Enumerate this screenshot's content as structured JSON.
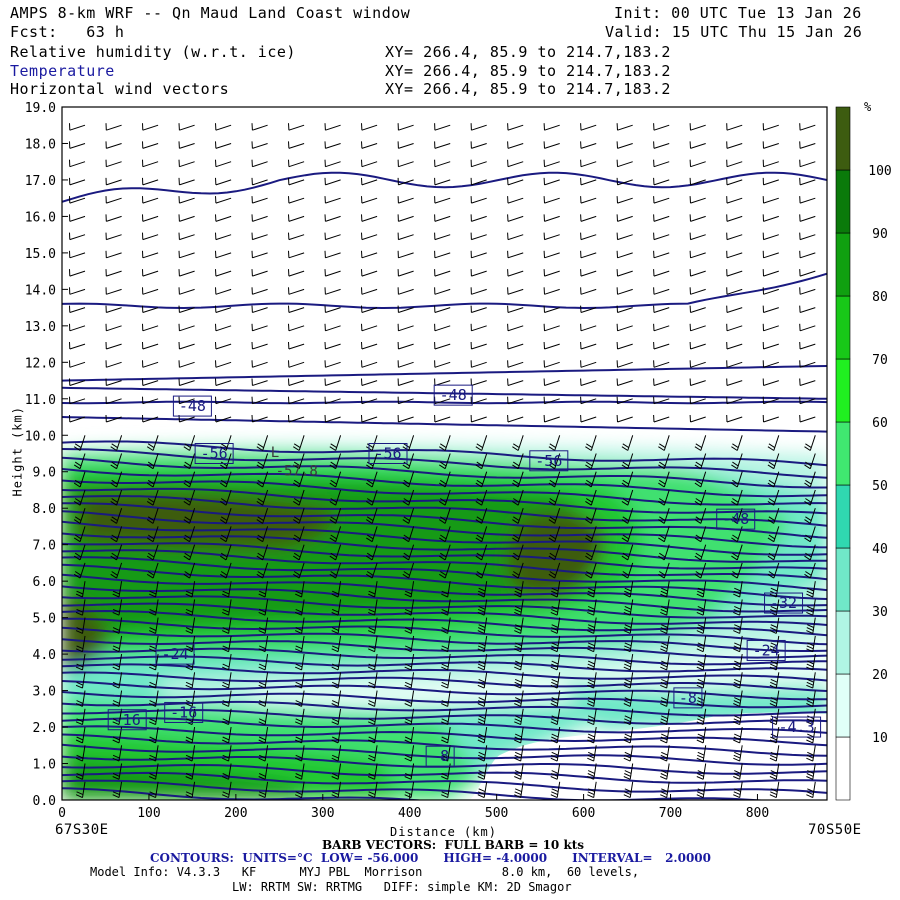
{
  "header": {
    "title": "AMPS 8-km WRF -- Qn Maud Land Coast window",
    "fcst": "Fcst:   63 h",
    "init": "Init: 00 UTC Tue 13 Jan 26",
    "valid": "Valid: 15 UTC Thu 15 Jan 26"
  },
  "fields": [
    {
      "name": "Relative humidity (w.r.t. ice)",
      "xy": "XY= 266.4, 85.9 to 214.7,183.2"
    },
    {
      "name": "Temperature",
      "xy": "XY= 266.4, 85.9 to 214.7,183.2"
    },
    {
      "name": "Horizontal wind vectors",
      "xy": "XY= 266.4, 85.9 to 214.7,183.2"
    }
  ],
  "footer": {
    "left_coord": "67S30E",
    "right_coord": "70S50E",
    "barb": "BARB VECTORS:  FULL BARB = 10 kts",
    "contours": "CONTOURS:  UNITS=°C  LOW= -56.000      HIGH= -4.0000      INTERVAL=   2.0000",
    "model1": "Model Info: V4.3.3   KF      MYJ PBL  Morrison           8.0 km,  60 levels,",
    "model2": "LW: RRTM SW: RRTMG   DIFF: simple KM: 2D Smagor"
  },
  "colors": {
    "contour": "#1a1a80",
    "rh_scale": [
      "#ffffff",
      "#e0fff8",
      "#b0f5e4",
      "#70e8c8",
      "#30d8b0",
      "#40e870",
      "#20f020",
      "#18c818",
      "#10a010",
      "#0a7a0a",
      "#3d5c10"
    ]
  },
  "chart_data": {
    "type": "heatmap",
    "title": "Relative humidity (w.r.t. ice), Temperature, Horizontal wind vectors",
    "xlabel": "Distance (km)",
    "ylabel": "Height (km)",
    "x_ticks": [
      0,
      100,
      200,
      300,
      400,
      500,
      600,
      700,
      800
    ],
    "y_ticks": [
      "0.0",
      "1.0",
      "2.0",
      "3.0",
      "4.0",
      "5.0",
      "6.0",
      "7.0",
      "8.0",
      "9.0",
      "10.0",
      "11.0",
      "12.0",
      "13.0",
      "14.0",
      "15.0",
      "16.0",
      "17.0",
      "18.0",
      "19.0"
    ],
    "xlim": [
      0,
      880
    ],
    "ylim": [
      0,
      19
    ],
    "colorbar": {
      "unit": "%",
      "ticks": [
        10,
        20,
        30,
        40,
        50,
        60,
        70,
        80,
        90,
        100
      ]
    },
    "contour_labels": [
      {
        "text": "-48",
        "x": 150,
        "y": 10.8
      },
      {
        "text": "-48",
        "x": 450,
        "y": 11.1
      },
      {
        "text": "-56",
        "x": 175,
        "y": 9.5
      },
      {
        "text": "-56",
        "x": 375,
        "y": 9.5
      },
      {
        "text": "-56",
        "x": 560,
        "y": 9.3
      },
      {
        "text": "-48",
        "x": 775,
        "y": 7.7
      },
      {
        "text": "-32",
        "x": 830,
        "y": 5.4
      },
      {
        "text": "-24",
        "x": 130,
        "y": 4.0
      },
      {
        "text": "-24",
        "x": 810,
        "y": 4.1
      },
      {
        "text": "-16",
        "x": 75,
        "y": 2.2
      },
      {
        "text": "-16",
        "x": 140,
        "y": 2.4
      },
      {
        "text": "-8",
        "x": 435,
        "y": 1.2
      },
      {
        "text": "-8",
        "x": 720,
        "y": 2.8
      },
      {
        "text": "-4.3",
        "x": 845,
        "y": 2.0
      }
    ],
    "extrema_labels": [
      {
        "text": "L",
        "x": 245,
        "y": 9.4
      },
      {
        "text": "-57.8",
        "x": 270,
        "y": 8.9
      }
    ],
    "rh_bands": [
      {
        "name": "upper_moist_layer",
        "base_km": 2.5,
        "top_km": 9.5,
        "peak_rh": 100
      },
      {
        "name": "mid_dry_tongue",
        "base_km": 2.0,
        "top_km": 5.5,
        "peak_rh": 30
      },
      {
        "name": "boundary_layer",
        "base_km": 0.0,
        "top_km": 2.0,
        "peak_rh": 70
      }
    ]
  }
}
